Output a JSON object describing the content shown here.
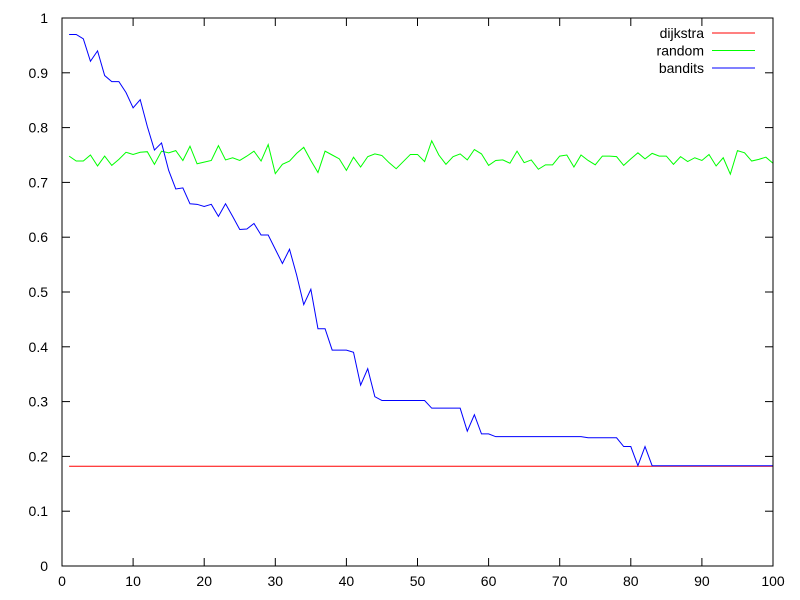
{
  "chart_data": {
    "type": "line",
    "title": "",
    "xlabel": "",
    "ylabel": "",
    "xlim": [
      0,
      100
    ],
    "ylim": [
      0,
      1
    ],
    "xticks": [
      0,
      10,
      20,
      30,
      40,
      50,
      60,
      70,
      80,
      90,
      100
    ],
    "yticks": [
      0,
      0.1,
      0.2,
      0.3,
      0.4,
      0.5,
      0.6,
      0.7,
      0.8,
      0.9,
      1
    ],
    "grid": false,
    "legend_position": "top-right",
    "series": [
      {
        "name": "dijkstra",
        "color": "#ff0000",
        "x": [
          1,
          100
        ],
        "y": [
          0.182,
          0.182
        ]
      },
      {
        "name": "random",
        "color": "#00ff00",
        "x": [
          1,
          2,
          3,
          4,
          5,
          6,
          7,
          8,
          9,
          10,
          11,
          12,
          13,
          14,
          15,
          16,
          17,
          18,
          19,
          20,
          21,
          22,
          23,
          24,
          25,
          26,
          27,
          28,
          29,
          30,
          31,
          32,
          33,
          34,
          35,
          36,
          37,
          38,
          39,
          40,
          41,
          42,
          43,
          44,
          45,
          46,
          47,
          48,
          49,
          50,
          51,
          52,
          53,
          54,
          55,
          56,
          57,
          58,
          59,
          60,
          61,
          62,
          63,
          64,
          65,
          66,
          67,
          68,
          69,
          70,
          71,
          72,
          73,
          74,
          75,
          76,
          77,
          78,
          79,
          80,
          81,
          82,
          83,
          84,
          85,
          86,
          87,
          88,
          89,
          90,
          91,
          92,
          93,
          94,
          95,
          96,
          97,
          98,
          99,
          100
        ],
        "y": [
          0.748,
          0.739,
          0.739,
          0.75,
          0.73,
          0.748,
          0.731,
          0.742,
          0.755,
          0.751,
          0.755,
          0.756,
          0.733,
          0.757,
          0.754,
          0.758,
          0.74,
          0.766,
          0.734,
          0.737,
          0.74,
          0.767,
          0.741,
          0.745,
          0.74,
          0.748,
          0.757,
          0.739,
          0.769,
          0.716,
          0.733,
          0.739,
          0.753,
          0.764,
          0.74,
          0.718,
          0.757,
          0.75,
          0.743,
          0.722,
          0.746,
          0.728,
          0.747,
          0.752,
          0.749,
          0.736,
          0.725,
          0.738,
          0.751,
          0.751,
          0.738,
          0.776,
          0.75,
          0.733,
          0.747,
          0.752,
          0.741,
          0.76,
          0.752,
          0.731,
          0.74,
          0.741,
          0.735,
          0.757,
          0.736,
          0.741,
          0.724,
          0.732,
          0.732,
          0.748,
          0.75,
          0.728,
          0.75,
          0.74,
          0.732,
          0.748,
          0.748,
          0.747,
          0.731,
          0.743,
          0.754,
          0.743,
          0.753,
          0.748,
          0.748,
          0.733,
          0.747,
          0.738,
          0.745,
          0.74,
          0.751,
          0.73,
          0.745,
          0.715,
          0.758,
          0.754,
          0.739,
          0.742,
          0.746,
          0.735
        ]
      },
      {
        "name": "bandits",
        "color": "#0000ff",
        "x": [
          1,
          2,
          3,
          4,
          5,
          6,
          7,
          8,
          9,
          10,
          11,
          12,
          13,
          14,
          15,
          16,
          17,
          18,
          19,
          20,
          21,
          22,
          23,
          24,
          25,
          26,
          27,
          28,
          29,
          30,
          31,
          32,
          33,
          34,
          35,
          36,
          37,
          38,
          39,
          40,
          41,
          42,
          43,
          44,
          45,
          46,
          47,
          48,
          49,
          50,
          51,
          52,
          53,
          54,
          55,
          56,
          57,
          58,
          59,
          60,
          61,
          62,
          63,
          64,
          65,
          66,
          67,
          68,
          69,
          70,
          71,
          72,
          73,
          74,
          75,
          76,
          77,
          78,
          79,
          80,
          81,
          82,
          83,
          84,
          85,
          86,
          87,
          88,
          89,
          90,
          91,
          92,
          93,
          94,
          95,
          96,
          97,
          98,
          99,
          100
        ],
        "y": [
          0.97,
          0.97,
          0.962,
          0.921,
          0.94,
          0.895,
          0.884,
          0.884,
          0.864,
          0.836,
          0.851,
          0.802,
          0.759,
          0.772,
          0.722,
          0.688,
          0.69,
          0.661,
          0.66,
          0.656,
          0.66,
          0.638,
          0.661,
          0.638,
          0.614,
          0.615,
          0.625,
          0.604,
          0.604,
          0.578,
          0.552,
          0.578,
          0.531,
          0.477,
          0.505,
          0.433,
          0.433,
          0.394,
          0.394,
          0.394,
          0.39,
          0.33,
          0.36,
          0.309,
          0.302,
          0.302,
          0.302,
          0.302,
          0.302,
          0.302,
          0.302,
          0.288,
          0.288,
          0.288,
          0.288,
          0.288,
          0.246,
          0.276,
          0.241,
          0.241,
          0.236,
          0.236,
          0.236,
          0.236,
          0.236,
          0.236,
          0.236,
          0.236,
          0.236,
          0.236,
          0.236,
          0.236,
          0.236,
          0.234,
          0.234,
          0.234,
          0.234,
          0.234,
          0.218,
          0.218,
          0.183,
          0.218,
          0.183,
          0.183,
          0.183,
          0.183,
          0.183,
          0.183,
          0.183,
          0.183,
          0.183,
          0.183,
          0.183,
          0.183,
          0.183,
          0.183,
          0.183,
          0.183,
          0.183,
          0.183
        ]
      }
    ]
  }
}
